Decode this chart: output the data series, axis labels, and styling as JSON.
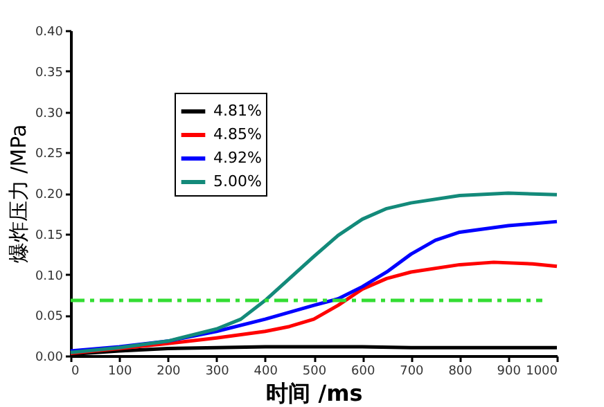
{
  "chart_data": {
    "type": "line",
    "xlabel": "时间 /ms",
    "ylabel": "爆炸压力 /MPa",
    "xlim": [
      0,
      1000
    ],
    "xticks": [
      0,
      100,
      200,
      300,
      400,
      500,
      600,
      700,
      800,
      900,
      1000
    ],
    "ylim": [
      0,
      0.4
    ],
    "yticks": [
      {
        "value": 0,
        "label": "0.00"
      },
      {
        "value": 0.05,
        "label": "0.05"
      },
      {
        "value": 0.1,
        "label": "0.10"
      },
      {
        "value": 0.15,
        "label": "0.15"
      },
      {
        "value": 0.2,
        "label": "0.20"
      },
      {
        "value": 0.25,
        "label": "0.25"
      },
      {
        "value": 0.3,
        "label": "0.30"
      },
      {
        "value": 0.35,
        "label": "0.35"
      },
      {
        "value": 0.4,
        "label": "0.40"
      }
    ],
    "grid": false,
    "legend": "top left",
    "marker": "none",
    "line_style": "solid",
    "series": [
      {
        "name": "4.81%",
        "color": "#000000",
        "x": [
          0,
          100,
          200,
          300,
          400,
          500,
          600,
          700,
          800,
          900,
          1000
        ],
        "values": [
          0.002,
          0.006,
          0.009,
          0.01,
          0.011,
          0.011,
          0.011,
          0.01,
          0.01,
          0.01,
          0.01
        ]
      },
      {
        "name": "4.85%",
        "color": "#ff0000",
        "x": [
          0,
          100,
          200,
          300,
          400,
          450,
          500,
          550,
          600,
          650,
          700,
          800,
          870,
          950,
          1000
        ],
        "values": [
          0.003,
          0.009,
          0.015,
          0.022,
          0.03,
          0.036,
          0.045,
          0.062,
          0.082,
          0.095,
          0.103,
          0.112,
          0.115,
          0.113,
          0.11
        ]
      },
      {
        "name": "4.92%",
        "color": "#0000ff",
        "x": [
          0,
          100,
          200,
          300,
          400,
          500,
          550,
          600,
          650,
          700,
          750,
          800,
          900,
          1000
        ],
        "values": [
          0.006,
          0.011,
          0.018,
          0.03,
          0.045,
          0.062,
          0.07,
          0.085,
          0.103,
          0.125,
          0.142,
          0.152,
          0.16,
          0.165
        ]
      },
      {
        "name": "5.00%",
        "color": "#138a7a",
        "x": [
          0,
          100,
          200,
          300,
          350,
          400,
          450,
          500,
          550,
          600,
          650,
          700,
          800,
          900,
          1000
        ],
        "values": [
          0.004,
          0.01,
          0.018,
          0.033,
          0.045,
          0.068,
          0.095,
          0.122,
          0.148,
          0.168,
          0.181,
          0.188,
          0.197,
          0.2,
          0.198
        ]
      }
    ],
    "ref_lines": [
      {
        "axis": "y",
        "value": 0.068,
        "label": null,
        "color": "#33dd33",
        "line_style": "dashed"
      }
    ]
  }
}
